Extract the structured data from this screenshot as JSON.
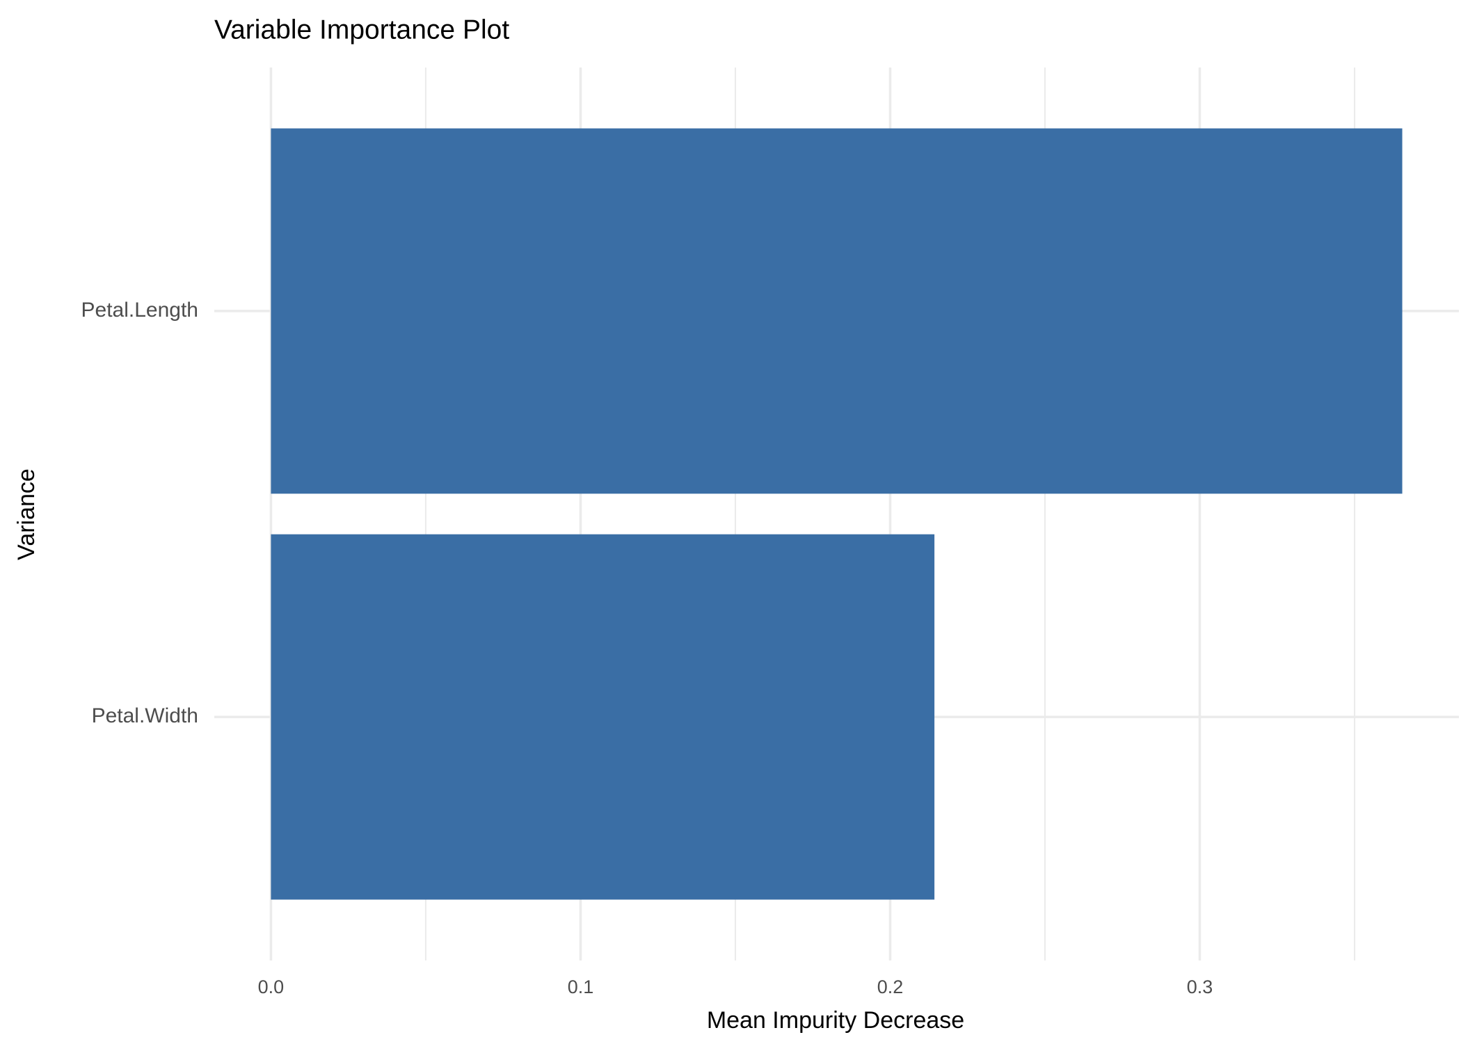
{
  "chart_data": {
    "type": "bar",
    "orientation": "horizontal",
    "title": "Variable Importance Plot",
    "x_label": "Mean Impurity Decrease",
    "y_label": "Variance",
    "categories": [
      "Petal.Length",
      "Petal.Width"
    ],
    "values": [
      0.3654,
      0.2143
    ],
    "color": "#3a6ea5",
    "xlim": [
      -0.0183,
      0.3837
    ],
    "xticks": [
      {
        "value": 0,
        "label": "0.0"
      },
      0.1,
      0.2,
      0.3
    ],
    "minor_xticks": [
      0.05,
      0.15,
      0.25,
      0.35
    ],
    "grid": true
  }
}
